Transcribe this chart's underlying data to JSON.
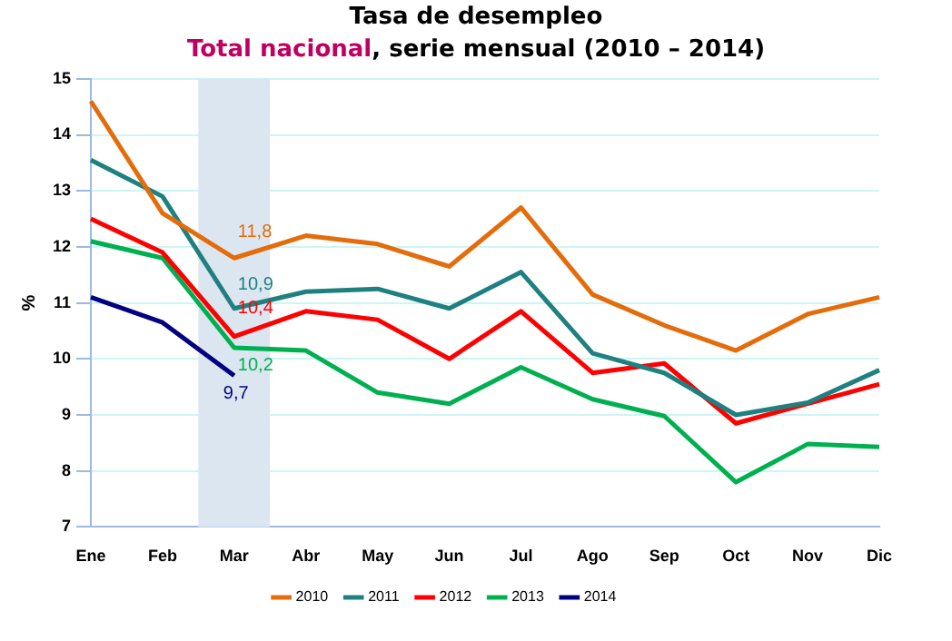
{
  "chart_data": {
    "type": "line",
    "title": "Tasa de desempleo",
    "subtitle": "Total nacional, serie mensual (2010 – 2014)",
    "ylabel": "%",
    "categories": [
      "Ene",
      "Feb",
      "Mar",
      "Abr",
      "May",
      "Jun",
      "Jul",
      "Ago",
      "Sep",
      "Oct",
      "Nov",
      "Dic"
    ],
    "series": [
      {
        "name": "2010",
        "color": "#e46c0a",
        "values": [
          14.6,
          12.6,
          11.8,
          12.2,
          12.05,
          11.65,
          12.7,
          11.15,
          10.6,
          10.15,
          10.8,
          11.1
        ],
        "value_labels": [
          null,
          null,
          "11,8",
          null,
          null,
          null,
          null,
          null,
          null,
          null,
          null,
          null
        ]
      },
      {
        "name": "2011",
        "color": "#1f8080",
        "values": [
          13.55,
          12.9,
          10.9,
          11.2,
          11.25,
          10.9,
          11.55,
          10.1,
          9.75,
          9.0,
          9.22,
          9.8
        ],
        "value_labels": [
          null,
          null,
          "10,9",
          null,
          null,
          null,
          null,
          null,
          null,
          null,
          null,
          null
        ]
      },
      {
        "name": "2012",
        "color": "#ff0000",
        "values": [
          12.5,
          11.9,
          10.4,
          10.85,
          10.7,
          10.0,
          10.85,
          9.75,
          9.92,
          8.85,
          9.2,
          9.55
        ],
        "value_labels": [
          null,
          null,
          "10,4",
          null,
          null,
          null,
          null,
          null,
          null,
          null,
          null,
          null
        ]
      },
      {
        "name": "2013",
        "color": "#00b050",
        "values": [
          12.1,
          11.8,
          10.2,
          10.15,
          9.4,
          9.2,
          9.85,
          9.28,
          8.98,
          7.8,
          8.48,
          8.43
        ],
        "value_labels": [
          null,
          null,
          "10,2",
          null,
          null,
          null,
          null,
          null,
          null,
          null,
          null,
          null
        ]
      },
      {
        "name": "2014",
        "color": "#000080",
        "values": [
          11.1,
          10.65,
          9.7,
          null,
          null,
          null,
          null,
          null,
          null,
          null,
          null,
          null
        ],
        "value_labels": [
          null,
          null,
          "9,7",
          null,
          null,
          null,
          null,
          null,
          null,
          null,
          null,
          null
        ]
      }
    ],
    "ylim": [
      7,
      15
    ],
    "yticks": [
      7,
      8,
      9,
      10,
      11,
      12,
      13,
      14,
      15
    ],
    "bands": [
      {
        "axis": "x",
        "from": "Mar",
        "to": "Mar",
        "color": "#dce6f1"
      }
    ],
    "grid": "y",
    "legend": "bottom",
    "marker": "none",
    "line_style": "solid"
  }
}
